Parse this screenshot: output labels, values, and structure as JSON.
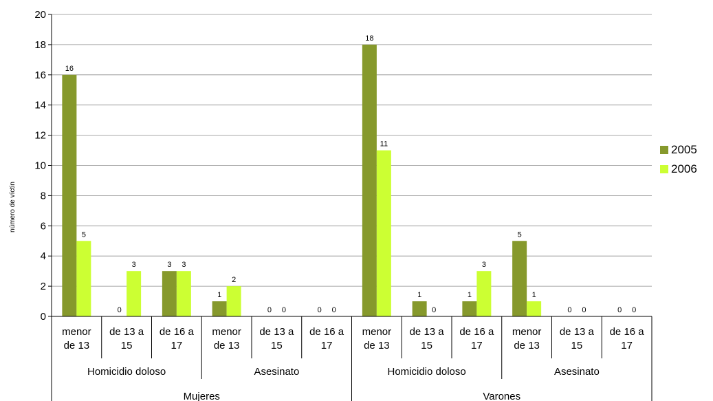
{
  "chart_data": {
    "type": "bar",
    "ylabel": "número de víctin",
    "ylim": [
      0,
      20
    ],
    "yticks": [
      0,
      2,
      4,
      6,
      8,
      10,
      12,
      14,
      16,
      18,
      20
    ],
    "grid": "horizontal",
    "legend_position": "right",
    "categories": [
      "menor de 13",
      "de 13 a 15",
      "de 16 a 17",
      "menor de 13",
      "de 13 a 15",
      "de 16 a 17",
      "menor de 13",
      "de 13 a 15",
      "de 16 a 17",
      "menor de 13",
      "de 13 a 15",
      "de 16 a 17"
    ],
    "category_lines": [
      [
        "menor",
        "de 13"
      ],
      [
        "de 13 a",
        "15"
      ],
      [
        "de 16 a",
        "17"
      ],
      [
        "menor",
        "de 13"
      ],
      [
        "de 13 a",
        "15"
      ],
      [
        "de 16 a",
        "17"
      ],
      [
        "menor",
        "de 13"
      ],
      [
        "de 13 a",
        "15"
      ],
      [
        "de 16 a",
        "17"
      ],
      [
        "menor",
        "de 13"
      ],
      [
        "de 13 a",
        "15"
      ],
      [
        "de 16 a",
        "17"
      ]
    ],
    "groups_level2": [
      "Homicidio doloso",
      "Asesinato",
      "Homicidio doloso",
      "Asesinato"
    ],
    "groups_level3": [
      "Mujeres",
      "Varones"
    ],
    "series": [
      {
        "name": "2005",
        "color": "#86992c",
        "values": [
          16,
          0,
          3,
          1,
          0,
          0,
          18,
          1,
          1,
          5,
          0,
          0
        ]
      },
      {
        "name": "2006",
        "color": "#ccff33",
        "values": [
          5,
          3,
          3,
          2,
          0,
          0,
          11,
          0,
          3,
          1,
          0,
          0
        ]
      }
    ]
  }
}
